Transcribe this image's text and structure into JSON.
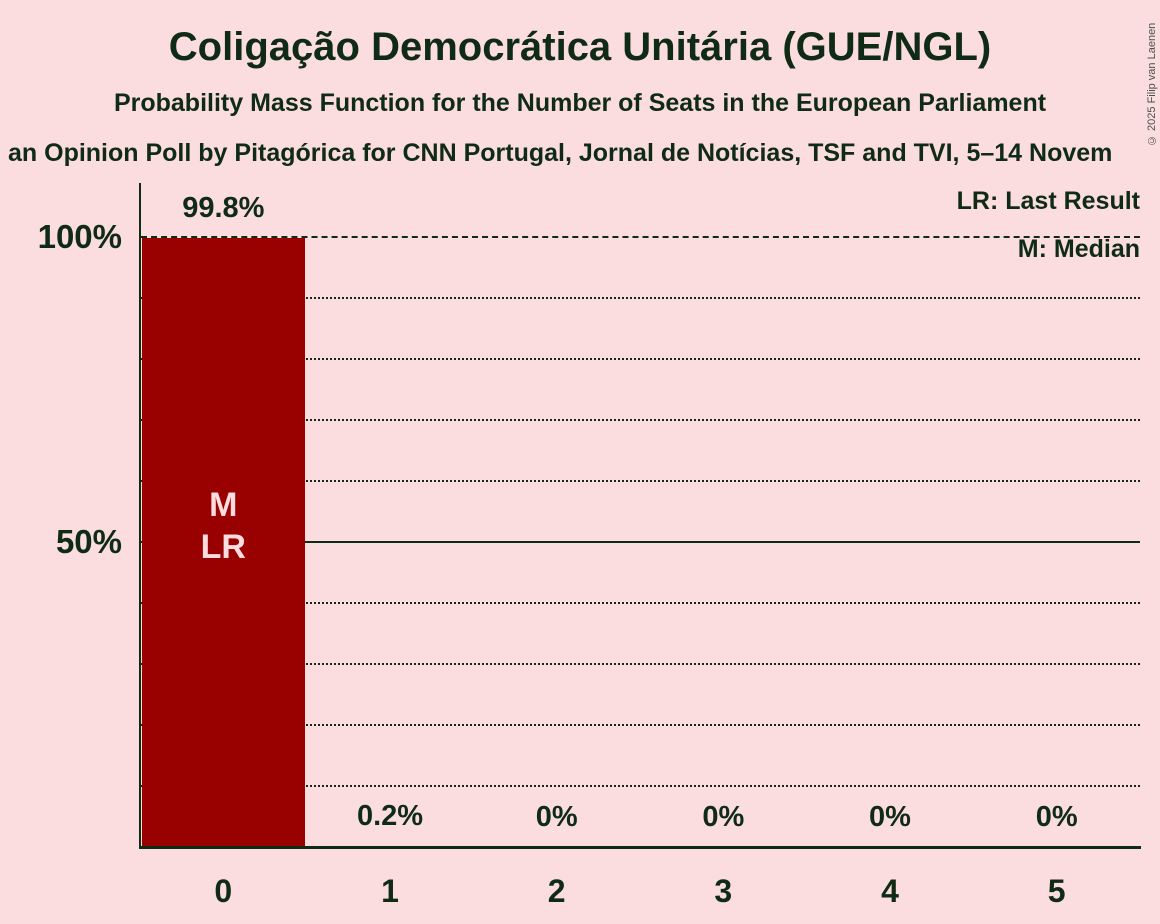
{
  "page": {
    "background": "#fbdcdf",
    "text_color": "#0f2b15"
  },
  "header": {
    "title": "Coligação Democrática Unitária (GUE/NGL)",
    "subtitle": "Probability Mass Function for the Number of Seats in the European Parliament",
    "subtitle2": "an Opinion Poll by Pitagórica for CNN Portugal, Jornal de Notícias, TSF and TVI, 5–14 Novem",
    "copyright": "© 2025 Filip van Laenen"
  },
  "legend": {
    "last_result": "LR: Last Result",
    "median": "M: Median"
  },
  "chart_data": {
    "type": "bar",
    "title": "Coligação Democrática Unitária (GUE/NGL)",
    "categories": [
      "0",
      "1",
      "2",
      "3",
      "4",
      "5"
    ],
    "values": [
      99.8,
      0.2,
      0,
      0,
      0,
      0
    ],
    "bar_labels": [
      "99.8%",
      "0.2%",
      "0%",
      "0%",
      "0%",
      "0%"
    ],
    "xlabel": "",
    "ylabel": "",
    "ylim": [
      0,
      100
    ],
    "grid": "on",
    "legend_position": "top-right",
    "y_ticks": [
      {
        "value": 100,
        "label": "100%"
      },
      {
        "value": 50,
        "label": "50%"
      }
    ],
    "gridlines": {
      "dashed": [
        100
      ],
      "solid": [
        50
      ],
      "dotted": [
        90,
        80,
        70,
        60,
        40,
        30,
        20,
        10
      ]
    },
    "bar_color": "#990000",
    "bar_annotation_color": "#fbdcdf",
    "bar_annotations": [
      {
        "index": 0,
        "lines": [
          "M",
          "LR"
        ]
      }
    ],
    "median_seats": "0",
    "last_result_seats": "0"
  }
}
